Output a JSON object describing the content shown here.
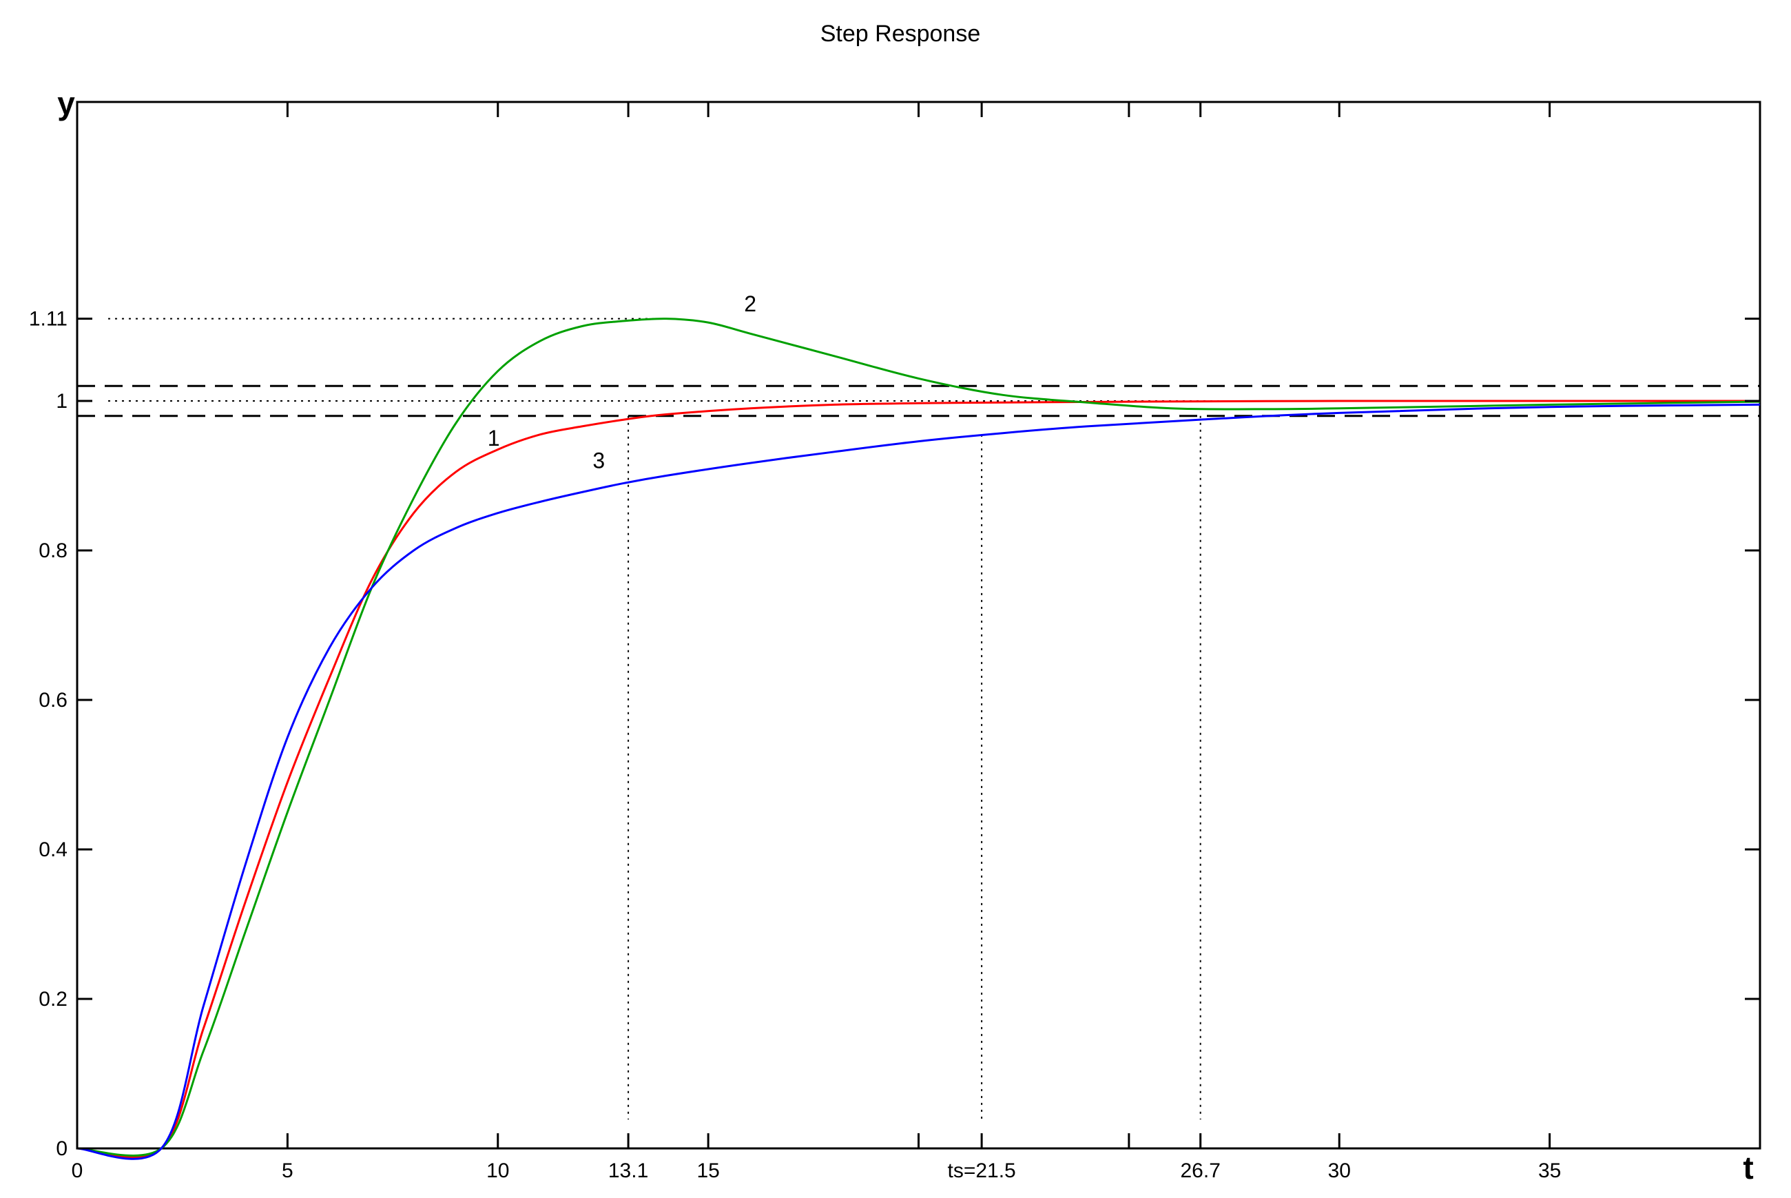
{
  "chart_data": {
    "type": "line",
    "title": "Step Response",
    "xlabel": "t",
    "ylabel": "y",
    "xlim": [
      0,
      40
    ],
    "ylim": [
      0,
      1.4
    ],
    "grid": false,
    "x_ticks": [
      {
        "value": 0,
        "label": "0"
      },
      {
        "value": 5,
        "label": "5"
      },
      {
        "value": 10,
        "label": "10"
      },
      {
        "value": 13.1,
        "label": "13.1"
      },
      {
        "value": 15,
        "label": "15"
      },
      {
        "value": 21.5,
        "label": "ts=21.5"
      },
      {
        "value": 26.7,
        "label": "26.7"
      },
      {
        "value": 30,
        "label": "30"
      },
      {
        "value": 35,
        "label": "35"
      }
    ],
    "x_minor_ticks": [
      20,
      25
    ],
    "y_ticks": [
      {
        "value": 0,
        "label": "0"
      },
      {
        "value": 0.2,
        "label": "0.2"
      },
      {
        "value": 0.4,
        "label": "0.4"
      },
      {
        "value": 0.6,
        "label": "0.6"
      },
      {
        "value": 0.8,
        "label": "0.8"
      },
      {
        "value": 1.0,
        "label": "1"
      },
      {
        "value": 1.11,
        "label": "1.11"
      }
    ],
    "series": [
      {
        "name": "1",
        "color": "#ff0000",
        "x": [
          0,
          2,
          3,
          4,
          5,
          6,
          7,
          8,
          9,
          10,
          11,
          12,
          13,
          14,
          16,
          18,
          20,
          22,
          25,
          30,
          35,
          40
        ],
        "y": [
          0,
          0,
          0.16,
          0.33,
          0.49,
          0.63,
          0.76,
          0.85,
          0.905,
          0.935,
          0.955,
          0.966,
          0.975,
          0.982,
          0.99,
          0.995,
          0.997,
          0.998,
          0.999,
          1.0,
          1.0,
          1.0
        ]
      },
      {
        "name": "2",
        "color": "#00a000",
        "x": [
          0,
          2,
          3,
          4,
          5,
          6,
          7,
          8,
          9,
          10,
          11,
          12,
          13,
          14,
          15,
          16,
          18,
          20,
          22,
          24,
          26,
          28,
          30,
          35,
          40
        ],
        "y": [
          0,
          0,
          0.13,
          0.29,
          0.45,
          0.6,
          0.75,
          0.87,
          0.97,
          1.04,
          1.08,
          1.1,
          1.107,
          1.11,
          1.105,
          1.09,
          1.06,
          1.03,
          1.008,
          0.998,
          0.99,
          0.989,
          0.99,
          0.995,
          0.999
        ]
      },
      {
        "name": "3",
        "color": "#0000ff",
        "x": [
          0,
          2,
          3,
          4,
          5,
          6,
          7,
          8,
          9,
          10,
          11,
          12,
          13,
          14,
          16,
          18,
          20,
          22,
          24,
          26.7,
          30,
          35,
          40
        ],
        "y": [
          0,
          0,
          0.19,
          0.38,
          0.55,
          0.67,
          0.75,
          0.8,
          0.83,
          0.85,
          0.865,
          0.878,
          0.89,
          0.9,
          0.917,
          0.932,
          0.946,
          0.957,
          0.966,
          0.975,
          0.984,
          0.992,
          0.995
        ]
      }
    ],
    "curve_labels": [
      {
        "text": "1",
        "x": 9.9,
        "y": 0.94
      },
      {
        "text": "2",
        "x": 16.0,
        "y": 1.12
      },
      {
        "text": "3",
        "x": 12.4,
        "y": 0.91
      }
    ],
    "tolerance_band": [
      0.98,
      1.02
    ],
    "reference_lines": {
      "overshoot": {
        "y": 1.11,
        "x_end": 13.8
      },
      "final_value": {
        "y": 1.0
      }
    },
    "settling_markers": [
      {
        "x": 13.1,
        "y_top": 0.98
      },
      {
        "x": 21.5,
        "y_top": 0.955
      },
      {
        "x": 26.7,
        "y_top": 0.98
      }
    ]
  }
}
